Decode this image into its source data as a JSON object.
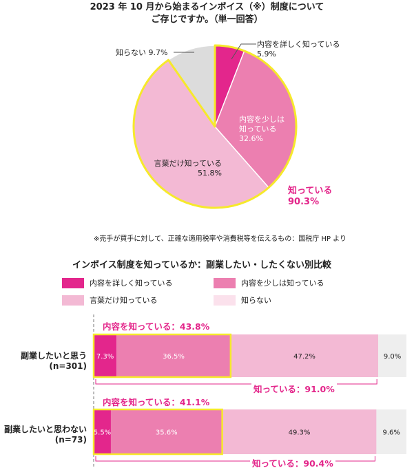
{
  "header": {
    "title_line1": "2023 年 10 月から始まるインボイス（※）制度について",
    "title_line2": "ご存じですか。（単一回答）"
  },
  "pie": {
    "known_label": "知っている",
    "known_value": "90.3%",
    "labels": {
      "detail": [
        "内容を詳しく知っている",
        "5.9%"
      ],
      "some": [
        "内容を少しは",
        "知っている",
        "32.6%"
      ],
      "name": [
        "言葉だけ知っている",
        "51.8%"
      ],
      "none": [
        "知らない 9.7%"
      ]
    }
  },
  "footnote": "※売手が買手に対して、正確な適用税率や消費税等を伝えるもの：国税庁 HP より",
  "section_title": "インボイス制度を知っているか：副業したい・したくない別比較",
  "legend": [
    {
      "label": "内容を詳しく知っている",
      "color": "#e3268c"
    },
    {
      "label": "内容を少しは知っている",
      "color": "#ec7fb0"
    },
    {
      "label": "言葉だけ知っている",
      "color": "#f3b9d4"
    },
    {
      "label": "知らない",
      "color": "#fbe1ec"
    }
  ],
  "bars": {
    "rows": [
      {
        "label_line1": "副業したいと思う",
        "label_line2": "(n=301)",
        "content_known": "内容を知っている：43.8%",
        "known": "知っている：91.0%",
        "value_labels": [
          "7.3%",
          "36.5%",
          "47.2%",
          "9.0%"
        ]
      },
      {
        "label_line1": "副業したいと思わない",
        "label_line2": "(n=73)",
        "content_known": "内容を知っている：41.1%",
        "known": "知っている：90.4%",
        "value_labels": [
          "5.5%",
          "35.6%",
          "49.3%",
          "9.6%"
        ]
      }
    ]
  },
  "colors": {
    "detail": "#e3268c",
    "some": "#ec7fb0",
    "name": "#f3b9d4",
    "none_pie": "#dcdcdc",
    "none_bar": "#eeeeee",
    "highlight": "#f6e92b",
    "accent_text": "#e3258a"
  },
  "chart_data": [
    {
      "type": "pie",
      "title": "2023 年 10 月から始まるインボイス（※）制度について ご存じですか。（単一回答）",
      "categories": [
        "内容を詳しく知っている",
        "内容を少しは知っている",
        "言葉だけ知っている",
        "知らない"
      ],
      "values": [
        5.9,
        32.6,
        51.8,
        9.7
      ],
      "annotations": [
        "知っている 90.3%"
      ]
    },
    {
      "type": "bar",
      "orientation": "horizontal-stacked",
      "title": "インボイス制度を知っているか：副業したい・したくない別比較",
      "categories": [
        "副業したいと思う (n=301)",
        "副業したいと思わない (n=73)"
      ],
      "series": [
        {
          "name": "内容を詳しく知っている",
          "values": [
            7.3,
            5.5
          ]
        },
        {
          "name": "内容を少しは知っている",
          "values": [
            36.5,
            35.6
          ]
        },
        {
          "name": "言葉だけ知っている",
          "values": [
            47.2,
            49.3
          ]
        },
        {
          "name": "知らない",
          "values": [
            9.0,
            9.6
          ]
        }
      ],
      "annotations": [
        "内容を知っている：43.8%",
        "知っている：91.0%",
        "内容を知っている：41.1%",
        "知っている：90.4%"
      ],
      "xlim": [
        0,
        100
      ]
    }
  ]
}
